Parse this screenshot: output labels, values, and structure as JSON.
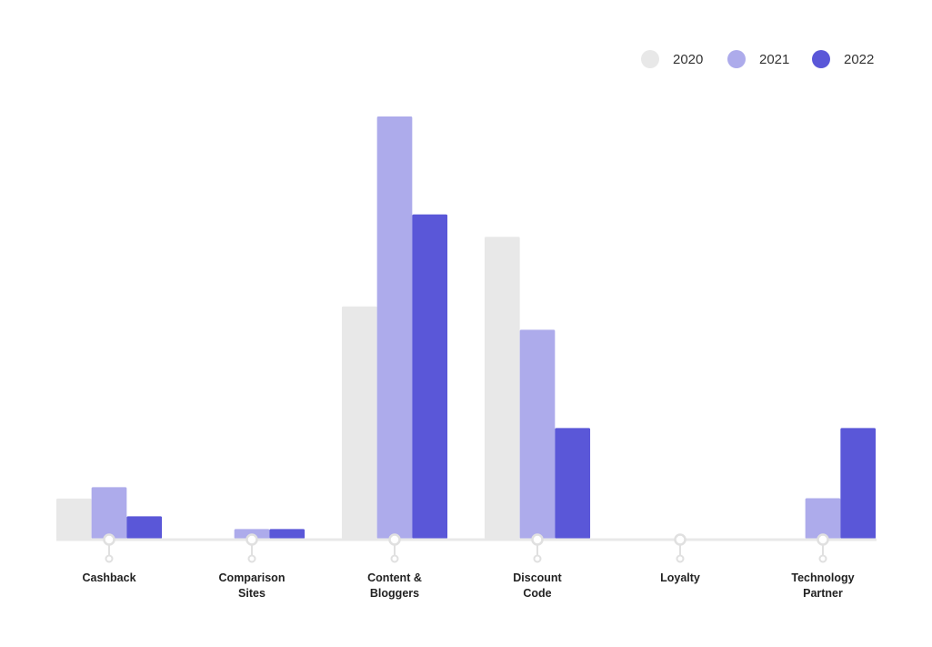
{
  "chart_data": {
    "type": "bar",
    "title": "",
    "xlabel": "",
    "ylabel": "",
    "ylim": [
      0,
      100
    ],
    "legend_position": "top-right",
    "grid": false,
    "categories": [
      [
        "Cashback"
      ],
      [
        "Comparison",
        "Sites"
      ],
      [
        "Content &",
        "Bloggers"
      ],
      [
        "Discount",
        "Code"
      ],
      [
        "Loyalty"
      ],
      [
        "Technology",
        "Partner"
      ]
    ],
    "series": [
      {
        "name": "2020",
        "color": "#e8e8e8",
        "values": [
          9.5,
          0,
          55,
          71.5,
          0,
          0
        ]
      },
      {
        "name": "2021",
        "color": "#adabeb",
        "values": [
          12.2,
          2.3,
          100,
          49.5,
          0,
          9.6
        ]
      },
      {
        "name": "2022",
        "color": "#5a57d8",
        "values": [
          5.3,
          2.3,
          76.8,
          26.2,
          0,
          26.2
        ]
      }
    ]
  },
  "colors": {
    "axis": "#e8e8e8",
    "tick_marker": "#e0e0e0"
  }
}
